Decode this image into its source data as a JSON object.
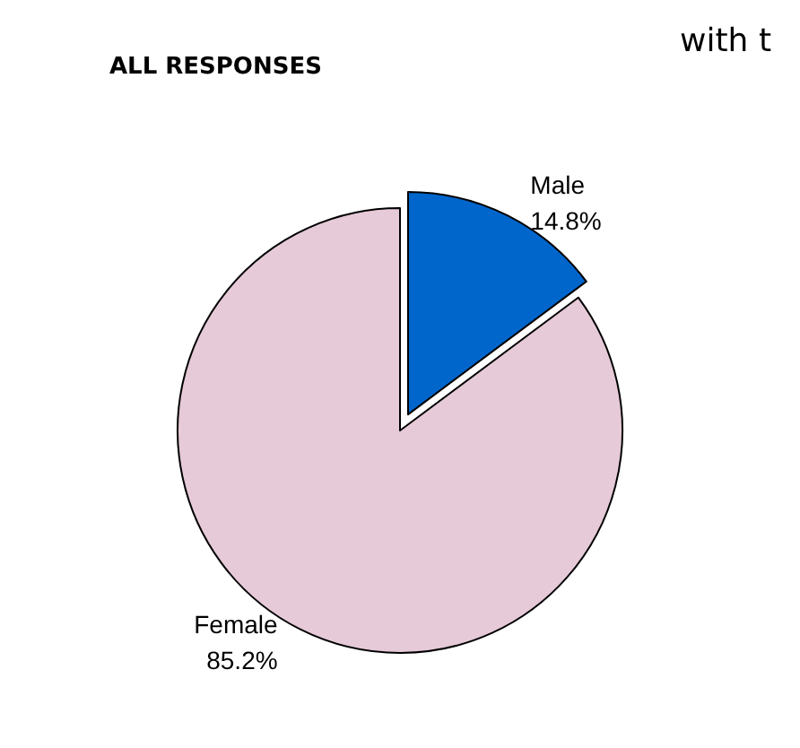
{
  "chart_data": {
    "type": "pie",
    "title": "ALL RESPONSES",
    "annotations": [
      "with t"
    ],
    "categories": [
      "Male",
      "Female"
    ],
    "values": [
      14.8,
      85.2
    ],
    "value_labels": [
      "14.8%",
      "85.2%"
    ],
    "colors": [
      "#0066cc",
      "#e6cad8"
    ],
    "legend": false
  }
}
